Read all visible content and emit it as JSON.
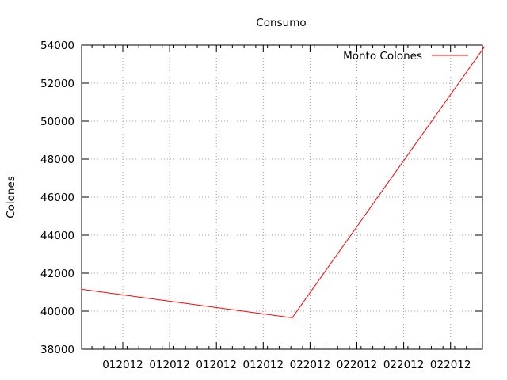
{
  "chart_data": {
    "type": "line",
    "title": "Consumo",
    "xlabel": "",
    "ylabel": "Colones",
    "ylim": [
      38000,
      54000
    ],
    "yticks": [
      38000,
      40000,
      42000,
      44000,
      46000,
      48000,
      50000,
      52000,
      54000
    ],
    "xticks": [
      "012012",
      "012012",
      "012012",
      "012012",
      "022012",
      "022012",
      "022012",
      "022012"
    ],
    "grid": true,
    "legend_position": "top-right",
    "series": [
      {
        "name": "Monto Colones",
        "color": "#ff0000",
        "x": [
          0,
          4.5,
          8.6
        ],
        "values": [
          41150,
          39650,
          53900
        ]
      }
    ]
  }
}
